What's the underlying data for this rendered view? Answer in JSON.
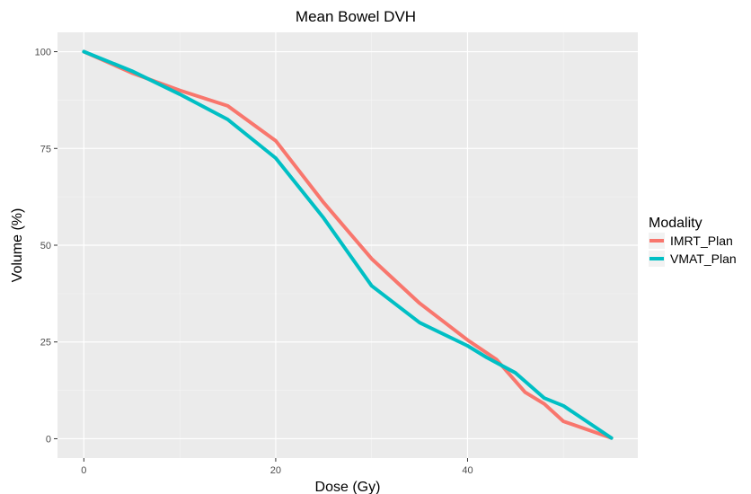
{
  "chart_data": {
    "type": "line",
    "title": "Mean Bowel DVH",
    "xlabel": "Dose (Gy)",
    "ylabel": "Volume (%)",
    "xlim": [
      -2.75,
      57.75
    ],
    "ylim": [
      -5,
      105
    ],
    "x_ticks": [
      0,
      20,
      40
    ],
    "y_ticks": [
      0,
      25,
      50,
      75,
      100
    ],
    "grid": true,
    "legend": {
      "title": "Modality",
      "position": "right"
    },
    "series": [
      {
        "name": "IMRT_Plan",
        "color": "#F8766D",
        "x": [
          0,
          5,
          10,
          15,
          20,
          25,
          30,
          35,
          40,
          43,
          46,
          48,
          50,
          55
        ],
        "y": [
          100,
          94.5,
          90,
          86,
          77,
          61,
          46.5,
          35,
          25.5,
          20.5,
          12,
          9,
          4.5,
          0.2
        ]
      },
      {
        "name": "VMAT_Plan",
        "color": "#00BFC4",
        "x": [
          0,
          5,
          10,
          15,
          20,
          25,
          30,
          35,
          40,
          42,
          45,
          48,
          50,
          55
        ],
        "y": [
          100,
          95,
          89,
          82.5,
          72.5,
          57,
          39.5,
          30,
          24,
          21,
          17,
          10.5,
          8.5,
          0.2
        ]
      }
    ]
  }
}
